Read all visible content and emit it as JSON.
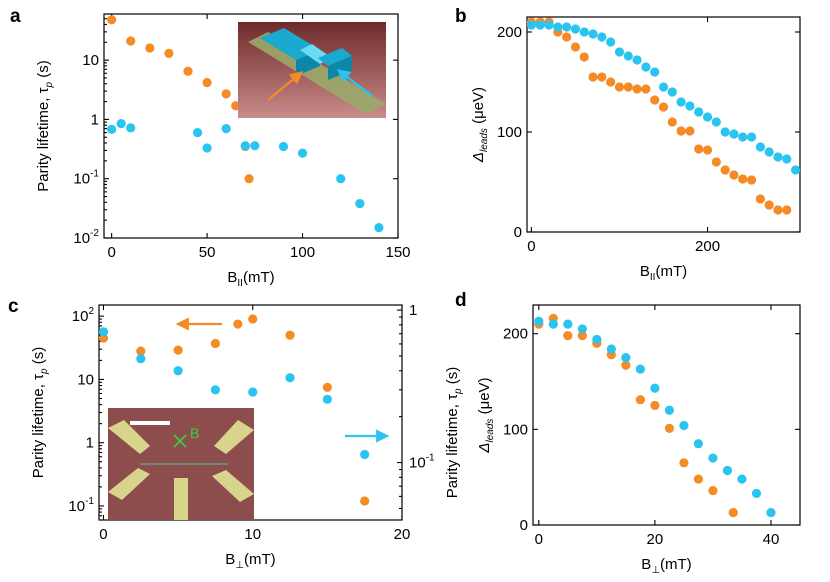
{
  "figure_letters": [
    "a",
    "b",
    "c",
    "d"
  ],
  "colors": {
    "orange": "#f48b25",
    "cyan": "#29c4ef"
  },
  "chart_data": [
    {
      "panel": "a",
      "type": "scatter",
      "xlabel": "B_II(mT)",
      "xlabel_main": "B",
      "xlabel_sub": "II",
      "xlabel_unit": "(mT)",
      "ylabel": "Parity lifetime, τ_p (s)",
      "ylabel_main": "Parity lifetime, τ",
      "ylabel_sub": "p",
      "ylabel_unit": " (s)",
      "xlim": [
        -4,
        150
      ],
      "ylim": [
        0.01,
        60
      ],
      "yscale": "log",
      "xticks": [
        0,
        50,
        100,
        150
      ],
      "yticks": [
        0.01,
        0.1,
        1,
        10
      ],
      "ytick_base": "10",
      "ytick_exps": [
        "-2",
        "-1",
        "",
        ""
      ],
      "ytick_plain": [
        "",
        "",
        "1",
        "10"
      ],
      "inset": "device-3d-schematic",
      "series": [
        {
          "color": "#f48b25",
          "x": [
            0,
            10,
            20,
            30,
            40,
            50,
            60,
            65,
            70,
            72
          ],
          "y": [
            48,
            21,
            16,
            13,
            6.5,
            4.2,
            2.7,
            1.7,
            0.35,
            0.1
          ]
        },
        {
          "color": "#29c4ef",
          "x": [
            0,
            5,
            10,
            45,
            50,
            60,
            70,
            75,
            90,
            100,
            120,
            130,
            140
          ],
          "y": [
            0.68,
            0.85,
            0.72,
            0.6,
            0.33,
            0.7,
            0.36,
            0.36,
            0.35,
            0.27,
            0.1,
            0.038,
            0.015
          ]
        }
      ]
    },
    {
      "panel": "b",
      "type": "scatter",
      "xlabel": "B_II(mT)",
      "xlabel_main": "B",
      "xlabel_sub": "II",
      "xlabel_unit": "(mT)",
      "ylabel": "Δ_leads (μeV)",
      "ylabel_main": "Δ",
      "ylabel_sub": "leads",
      "ylabel_unit": " (μeV)",
      "xlim": [
        -5,
        305
      ],
      "ylim": [
        0,
        215
      ],
      "xticks": [
        0,
        200
      ],
      "yticks": [
        0,
        100,
        200
      ],
      "series": [
        {
          "color": "#f48b25",
          "x": [
            0,
            10,
            20,
            30,
            40,
            50,
            60,
            70,
            80,
            90,
            100,
            110,
            120,
            130,
            140,
            150,
            160,
            170,
            180,
            190,
            200,
            210,
            220,
            230,
            240,
            250,
            260,
            270,
            280,
            290
          ],
          "y": [
            210,
            210,
            210,
            200,
            195,
            185,
            175,
            155,
            155,
            150,
            145,
            145,
            143,
            143,
            132,
            125,
            110,
            101,
            101,
            83,
            82,
            70,
            62,
            57,
            53,
            52,
            33,
            27,
            22,
            22
          ]
        },
        {
          "color": "#29c4ef",
          "x": [
            0,
            10,
            20,
            30,
            40,
            50,
            60,
            70,
            80,
            90,
            100,
            110,
            120,
            130,
            140,
            150,
            160,
            170,
            180,
            190,
            200,
            210,
            220,
            230,
            240,
            250,
            260,
            270,
            280,
            290,
            300
          ],
          "y": [
            207,
            207,
            207,
            205,
            205,
            203,
            200,
            198,
            195,
            190,
            180,
            176,
            172,
            165,
            160,
            145,
            140,
            130,
            126,
            120,
            115,
            110,
            100,
            98,
            95,
            95,
            85,
            80,
            75,
            73,
            62
          ]
        }
      ]
    },
    {
      "panel": "c",
      "type": "scatter",
      "xlabel": "B_⊥(mT)",
      "xlabel_main": "B",
      "xlabel_sub": "⊥",
      "xlabel_unit": "(mT)",
      "ylabel": "Parity lifetime, τ_p (s)",
      "ylabel_main": "Parity lifetime, τ",
      "ylabel_sub": "p",
      "ylabel_unit": " (s)",
      "y2label_main": "Parity lifetime, τ",
      "y2label_sub": "p",
      "y2label_unit": " (s)",
      "xlim": [
        -0.3,
        20
      ],
      "ylim": [
        0.06,
        150
      ],
      "yscale": "log",
      "y2lim": [
        0.042,
        1.08
      ],
      "y2scale": "log",
      "xticks": [
        0,
        10,
        20
      ],
      "yticks": [
        0.1,
        1,
        10,
        100
      ],
      "ytick_base": "10",
      "ytick_exps": [
        "-1",
        "",
        "",
        "2"
      ],
      "ytick_plain": [
        "",
        "1",
        "10",
        ""
      ],
      "y2ticks": [
        0.1,
        1
      ],
      "y2tick_base": "10",
      "y2tick_exps": [
        "-1",
        ""
      ],
      "y2tick_plain": [
        "",
        "1"
      ],
      "inset": "device-sem-image",
      "inset_label": "B",
      "series": [
        {
          "color": "#f48b25",
          "axis": "left",
          "x": [
            0,
            2.5,
            5,
            7.5,
            9,
            10,
            12.5,
            15,
            17.5
          ],
          "y": [
            45,
            28,
            29,
            37,
            75,
            90,
            50,
            7.5,
            0.12
          ]
        },
        {
          "color": "#29c4ef",
          "axis": "right",
          "x": [
            0,
            2.5,
            5,
            7.5,
            10,
            12.5,
            15,
            17.5
          ],
          "y": [
            0.72,
            0.48,
            0.4,
            0.3,
            0.29,
            0.36,
            0.26,
            0.113
          ]
        }
      ]
    },
    {
      "panel": "d",
      "type": "scatter",
      "xlabel": "B_⊥(mT)",
      "xlabel_main": "B",
      "xlabel_sub": "⊥",
      "xlabel_unit": "(mT)",
      "ylabel": "Δ_leads (μeV)",
      "ylabel_main": "Δ",
      "ylabel_sub": "leads",
      "ylabel_unit": " (μeV)",
      "xlim": [
        -1,
        45
      ],
      "ylim": [
        0,
        230
      ],
      "xticks": [
        0,
        20,
        40
      ],
      "yticks": [
        0,
        100,
        200
      ],
      "series": [
        {
          "color": "#f48b25",
          "x": [
            0,
            2.5,
            5,
            7.5,
            10,
            12.5,
            15,
            17.5,
            20,
            22.5,
            25,
            27.5,
            30,
            33.5
          ],
          "y": [
            210,
            216,
            198,
            198,
            190,
            178,
            167,
            131,
            125,
            101,
            65,
            48,
            36,
            13
          ]
        },
        {
          "color": "#29c4ef",
          "x": [
            0,
            2.5,
            5,
            7.5,
            10,
            12.5,
            15,
            17.5,
            20,
            22.5,
            25,
            27.5,
            30,
            32.5,
            35,
            37.5,
            40
          ],
          "y": [
            213,
            210,
            210,
            205,
            194,
            184,
            175,
            163,
            143,
            120,
            104,
            85,
            70,
            57,
            48,
            33,
            13
          ]
        }
      ]
    }
  ]
}
